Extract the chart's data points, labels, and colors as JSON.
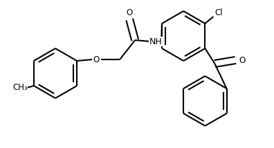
{
  "background_color": "#ffffff",
  "line_color": "#000000",
  "text_color": "#000000",
  "line_width": 1.5,
  "font_size": 8.5,
  "fig_width": 3.96,
  "fig_height": 2.14,
  "dpi": 100,
  "xlim": [
    0,
    396
  ],
  "ylim": [
    0,
    214
  ]
}
